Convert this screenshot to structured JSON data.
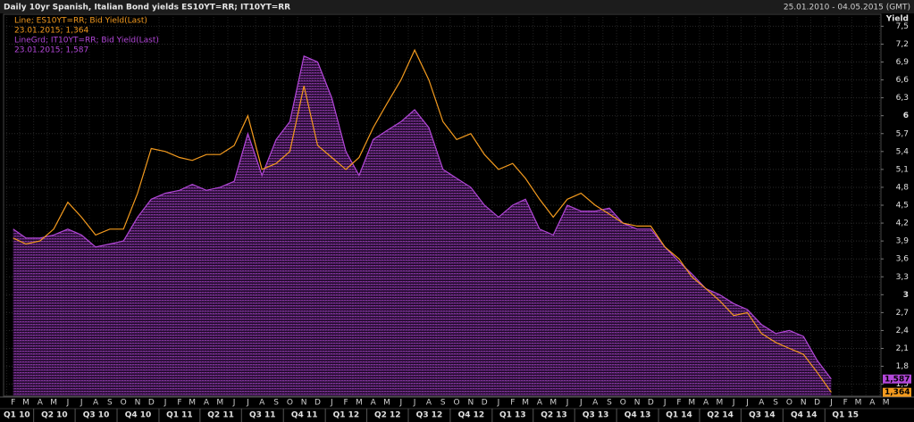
{
  "chart_data": {
    "type": "line",
    "title": "Daily 10yr Spanish, Italian Bond yields ES10YT=RR; IT10YT=RR",
    "date_range": "25.01.2010 - 04.05.2015 (GMT)",
    "y_axis_label": "Yield",
    "legend_lines": [
      "Line; ES10YT=RR; Bid Yield(Last)",
      "23.01.2015; 1,364",
      "LineGrd; IT10YT=RR; Bid Yield(Last)",
      "23.01.2015; 1,587"
    ],
    "xlim": [
      "2010-01-25",
      "2015-05-04"
    ],
    "ylim": [
      1.3,
      7.7
    ],
    "grid": true,
    "x": [
      "2010-02",
      "2010-03",
      "2010-04",
      "2010-05",
      "2010-06",
      "2010-07",
      "2010-08",
      "2010-09",
      "2010-10",
      "2010-11",
      "2010-12",
      "2011-01",
      "2011-02",
      "2011-03",
      "2011-04",
      "2011-05",
      "2011-06",
      "2011-07",
      "2011-08",
      "2011-09",
      "2011-10",
      "2011-11",
      "2011-12",
      "2012-01",
      "2012-02",
      "2012-03",
      "2012-04",
      "2012-05",
      "2012-06",
      "2012-07",
      "2012-08",
      "2012-09",
      "2012-10",
      "2012-11",
      "2012-12",
      "2013-01",
      "2013-02",
      "2013-03",
      "2013-04",
      "2013-05",
      "2013-06",
      "2013-07",
      "2013-08",
      "2013-09",
      "2013-10",
      "2013-11",
      "2013-12",
      "2014-01",
      "2014-02",
      "2014-03",
      "2014-04",
      "2014-05",
      "2014-06",
      "2014-07",
      "2014-08",
      "2014-09",
      "2014-10",
      "2014-11",
      "2014-12",
      "2015-01"
    ],
    "series": [
      {
        "name": "ES10YT=RR",
        "color": "#f39a1e",
        "style": "line",
        "values": [
          3.95,
          3.85,
          3.9,
          4.1,
          4.55,
          4.3,
          4.0,
          4.1,
          4.1,
          4.7,
          5.45,
          5.4,
          5.3,
          5.25,
          5.35,
          5.35,
          5.5,
          6.0,
          5.1,
          5.2,
          5.4,
          6.5,
          5.5,
          5.3,
          5.1,
          5.3,
          5.8,
          6.2,
          6.6,
          7.1,
          6.6,
          5.9,
          5.6,
          5.7,
          5.35,
          5.1,
          5.2,
          4.95,
          4.6,
          4.3,
          4.6,
          4.7,
          4.5,
          4.35,
          4.2,
          4.15,
          4.15,
          3.8,
          3.6,
          3.3,
          3.1,
          2.9,
          2.65,
          2.7,
          2.35,
          2.2,
          2.1,
          2.0,
          1.7,
          1.364
        ],
        "last": {
          "value": 1.364,
          "label": "1,364"
        }
      },
      {
        "name": "IT10YT=RR",
        "color": "#b347d9",
        "style": "area",
        "values": [
          4.1,
          3.95,
          3.95,
          4.0,
          4.1,
          4.0,
          3.8,
          3.85,
          3.9,
          4.3,
          4.6,
          4.7,
          4.75,
          4.85,
          4.75,
          4.8,
          4.9,
          5.7,
          5.0,
          5.6,
          5.9,
          7.0,
          6.9,
          6.3,
          5.4,
          5.0,
          5.6,
          5.75,
          5.9,
          6.1,
          5.8,
          5.1,
          4.95,
          4.8,
          4.5,
          4.3,
          4.5,
          4.6,
          4.1,
          4.0,
          4.5,
          4.4,
          4.4,
          4.45,
          4.2,
          4.1,
          4.1,
          3.8,
          3.55,
          3.35,
          3.1,
          3.0,
          2.85,
          2.75,
          2.5,
          2.35,
          2.4,
          2.3,
          1.9,
          1.587
        ],
        "last": {
          "value": 1.587,
          "label": "1,587"
        }
      }
    ],
    "yticks": [
      {
        "value": 7.5,
        "label": "7,5"
      },
      {
        "value": 7.2,
        "label": "7,2"
      },
      {
        "value": 6.9,
        "label": "6,9"
      },
      {
        "value": 6.6,
        "label": "6,6"
      },
      {
        "value": 6.3,
        "label": "6,3"
      },
      6,
      {
        "value": 5.7,
        "label": "5,7"
      },
      {
        "value": 5.4,
        "label": "5,4"
      },
      {
        "value": 5.1,
        "label": "5,1"
      },
      {
        "value": 4.8,
        "label": "4,8"
      },
      {
        "value": 4.5,
        "label": "4,5"
      },
      {
        "value": 4.2,
        "label": "4,2"
      },
      {
        "value": 3.9,
        "label": "3,9"
      },
      {
        "value": 3.6,
        "label": "3,6"
      },
      {
        "value": 3.3,
        "label": "3,3"
      },
      3,
      {
        "value": 2.7,
        "label": "2,7"
      },
      {
        "value": 2.4,
        "label": "2,4"
      },
      {
        "value": 2.1,
        "label": "2,1"
      },
      {
        "value": 1.8,
        "label": "1,8"
      },
      {
        "value": 1.5,
        "label": "1,5"
      }
    ],
    "xticks": [
      {
        "value": "2010-02",
        "label": "F"
      },
      {
        "value": "2010-03",
        "label": "M"
      },
      {
        "value": "2010-04",
        "label": "A"
      },
      {
        "value": "2010-05",
        "label": "M"
      },
      {
        "value": "2010-06",
        "label": "J"
      },
      {
        "value": "2010-07",
        "label": "J"
      },
      {
        "value": "2010-08",
        "label": "A"
      },
      {
        "value": "2010-09",
        "label": "S"
      },
      {
        "value": "2010-10",
        "label": "O"
      },
      {
        "value": "2010-11",
        "label": "N"
      },
      {
        "value": "2010-12",
        "label": "D"
      },
      {
        "value": "2011-01",
        "label": "J"
      },
      {
        "value": "2011-02",
        "label": "F"
      },
      {
        "value": "2011-03",
        "label": "M"
      },
      {
        "value": "2011-04",
        "label": "A"
      },
      {
        "value": "2011-05",
        "label": "M"
      },
      {
        "value": "2011-06",
        "label": "J"
      },
      {
        "value": "2011-07",
        "label": "J"
      },
      {
        "value": "2011-08",
        "label": "A"
      },
      {
        "value": "2011-09",
        "label": "S"
      },
      {
        "value": "2011-10",
        "label": "O"
      },
      {
        "value": "2011-11",
        "label": "N"
      },
      {
        "value": "2011-12",
        "label": "D"
      },
      {
        "value": "2012-01",
        "label": "J"
      },
      {
        "value": "2012-02",
        "label": "F"
      },
      {
        "value": "2012-03",
        "label": "M"
      },
      {
        "value": "2012-04",
        "label": "A"
      },
      {
        "value": "2012-05",
        "label": "M"
      },
      {
        "value": "2012-06",
        "label": "J"
      },
      {
        "value": "2012-07",
        "label": "J"
      },
      {
        "value": "2012-08",
        "label": "A"
      },
      {
        "value": "2012-09",
        "label": "S"
      },
      {
        "value": "2012-10",
        "label": "O"
      },
      {
        "value": "2012-11",
        "label": "N"
      },
      {
        "value": "2012-12",
        "label": "D"
      },
      {
        "value": "2013-01",
        "label": "J"
      },
      {
        "value": "2013-02",
        "label": "F"
      },
      {
        "value": "2013-03",
        "label": "M"
      },
      {
        "value": "2013-04",
        "label": "A"
      },
      {
        "value": "2013-05",
        "label": "M"
      },
      {
        "value": "2013-06",
        "label": "J"
      },
      {
        "value": "2013-07",
        "label": "J"
      },
      {
        "value": "2013-08",
        "label": "A"
      },
      {
        "value": "2013-09",
        "label": "S"
      },
      {
        "value": "2013-10",
        "label": "O"
      },
      {
        "value": "2013-11",
        "label": "N"
      },
      {
        "value": "2013-12",
        "label": "D"
      },
      {
        "value": "2014-01",
        "label": "J"
      },
      {
        "value": "2014-02",
        "label": "F"
      },
      {
        "value": "2014-03",
        "label": "M"
      },
      {
        "value": "2014-04",
        "label": "A"
      },
      {
        "value": "2014-05",
        "label": "M"
      },
      {
        "value": "2014-06",
        "label": "J"
      },
      {
        "value": "2014-07",
        "label": "J"
      },
      {
        "value": "2014-08",
        "label": "A"
      },
      {
        "value": "2014-09",
        "label": "S"
      },
      {
        "value": "2014-10",
        "label": "O"
      },
      {
        "value": "2014-11",
        "label": "N"
      },
      {
        "value": "2014-12",
        "label": "D"
      },
      {
        "value": "2015-01",
        "label": "J"
      },
      {
        "value": "2015-02",
        "label": "F"
      },
      {
        "value": "2015-03",
        "label": "M"
      },
      {
        "value": "2015-04",
        "label": "A"
      },
      {
        "value": "2015-05",
        "label": "M"
      }
    ],
    "quarter_ticks": [
      {
        "value": "2010-01",
        "label": "Q1 10"
      },
      {
        "value": "2010-04",
        "label": "Q2 10"
      },
      {
        "value": "2010-07",
        "label": "Q3 10"
      },
      {
        "value": "2010-10",
        "label": "Q4 10"
      },
      {
        "value": "2011-01",
        "label": "Q1 11"
      },
      {
        "value": "2011-04",
        "label": "Q2 11"
      },
      {
        "value": "2011-07",
        "label": "Q3 11"
      },
      {
        "value": "2011-10",
        "label": "Q4 11"
      },
      {
        "value": "2012-01",
        "label": "Q1 12"
      },
      {
        "value": "2012-04",
        "label": "Q2 12"
      },
      {
        "value": "2012-07",
        "label": "Q3 12"
      },
      {
        "value": "2012-10",
        "label": "Q4 12"
      },
      {
        "value": "2013-01",
        "label": "Q1 13"
      },
      {
        "value": "2013-04",
        "label": "Q2 13"
      },
      {
        "value": "2013-07",
        "label": "Q3 13"
      },
      {
        "value": "2013-10",
        "label": "Q4 13"
      },
      {
        "value": "2014-01",
        "label": "Q1 14"
      },
      {
        "value": "2014-04",
        "label": "Q2 14"
      },
      {
        "value": "2014-07",
        "label": "Q3 14"
      },
      {
        "value": "2014-10",
        "label": "Q4 14"
      },
      {
        "value": "2015-01",
        "label": "Q1 15"
      }
    ]
  }
}
